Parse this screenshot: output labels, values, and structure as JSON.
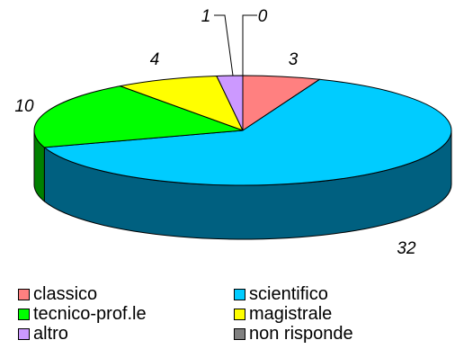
{
  "chart_data": {
    "type": "pie",
    "style": "3d",
    "title": "",
    "categories": [
      "classico",
      "scientifico",
      "tecnico-prof.le",
      "magistrale",
      "altro",
      "non risponde"
    ],
    "values": [
      3,
      32,
      10,
      4,
      1,
      0
    ],
    "data_labels": [
      "3",
      "32",
      "10",
      "4",
      "1",
      "0"
    ],
    "colors": [
      "#FF8080",
      "#00CCFF",
      "#00FF00",
      "#FFFF00",
      "#CC99FF",
      "#808080"
    ],
    "side_colors": [
      "#804040",
      "#006080",
      "#008000",
      "#808000",
      "#664C80",
      "#404040"
    ],
    "legend_position": "bottom"
  }
}
